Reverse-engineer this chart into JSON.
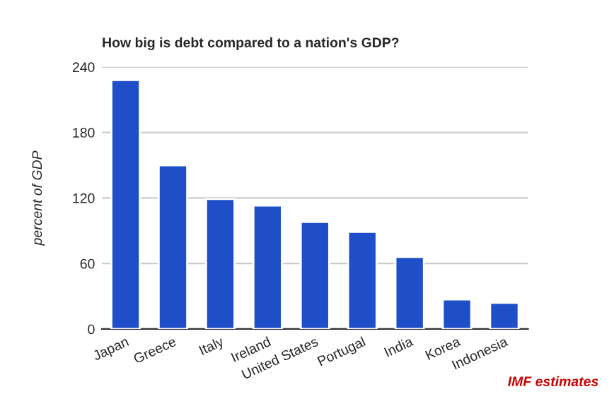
{
  "chart_data": {
    "type": "bar",
    "title": "How big is debt compared to a nation's GDP?",
    "ylabel": "percent of GDP",
    "categories": [
      "Japan",
      "Greece",
      "Italy",
      "Ireland",
      "United States",
      "Portugal",
      "India",
      "Korea",
      "Indonesia"
    ],
    "values": [
      228,
      150,
      119,
      113,
      98,
      89,
      66,
      27,
      24
    ],
    "color": "#1f4fc8",
    "ylim": [
      0,
      240
    ],
    "yticks": [
      0,
      60,
      120,
      180,
      240
    ],
    "grid": "y",
    "annotations": [
      "IMF estimates"
    ]
  }
}
